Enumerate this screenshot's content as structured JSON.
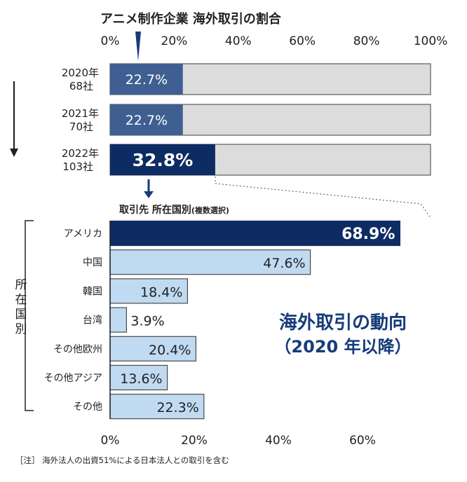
{
  "chart_data": [
    {
      "type": "bar",
      "orientation": "horizontal",
      "stacked_to": 100,
      "title": "アニメ制作企業 海外取引の割合",
      "categories": [
        {
          "year": "2020年",
          "count": "68社"
        },
        {
          "year": "2021年",
          "count": "70社"
        },
        {
          "year": "2022年",
          "count": "103社"
        }
      ],
      "values": [
        22.7,
        22.7,
        32.8
      ],
      "value_labels": [
        "22.7%",
        "22.7%",
        "32.8%"
      ],
      "xlim": [
        0,
        100
      ],
      "xticks": [
        "0%",
        "20%",
        "40%",
        "60%",
        "80%",
        "100%"
      ],
      "colors": {
        "fill": "#3f5f93",
        "highlight": "#0e2c64",
        "remainder": "#dcdcdc",
        "border": "#5a5a5a"
      }
    },
    {
      "type": "bar",
      "orientation": "horizontal",
      "title": "取引先 所在国別",
      "title_note": "(複数選択)",
      "group_label": "所在国別",
      "categories": [
        "アメリカ",
        "中国",
        "韓国",
        "台湾",
        "その他欧州",
        "その他アジア",
        "その他"
      ],
      "values": [
        68.9,
        47.6,
        18.4,
        3.9,
        20.4,
        13.6,
        22.3
      ],
      "value_labels": [
        "68.9%",
        "47.6%",
        "18.4%",
        "3.9%",
        "20.4%",
        "13.6%",
        "22.3%"
      ],
      "xlim": [
        0,
        80
      ],
      "xticks": [
        "0%",
        "20%",
        "40%",
        "60%"
      ],
      "colors": {
        "highlight": "#0e2c64",
        "fill": "#c0daf2",
        "border": "#4a4a4a"
      }
    }
  ],
  "annotation": {
    "line1": "海外取引の動向",
    "line2": "（2020 年以降）",
    "color": "#163b7a"
  },
  "footnote": "［注］ 海外法人の出資51%による日本法人との取引を含む"
}
